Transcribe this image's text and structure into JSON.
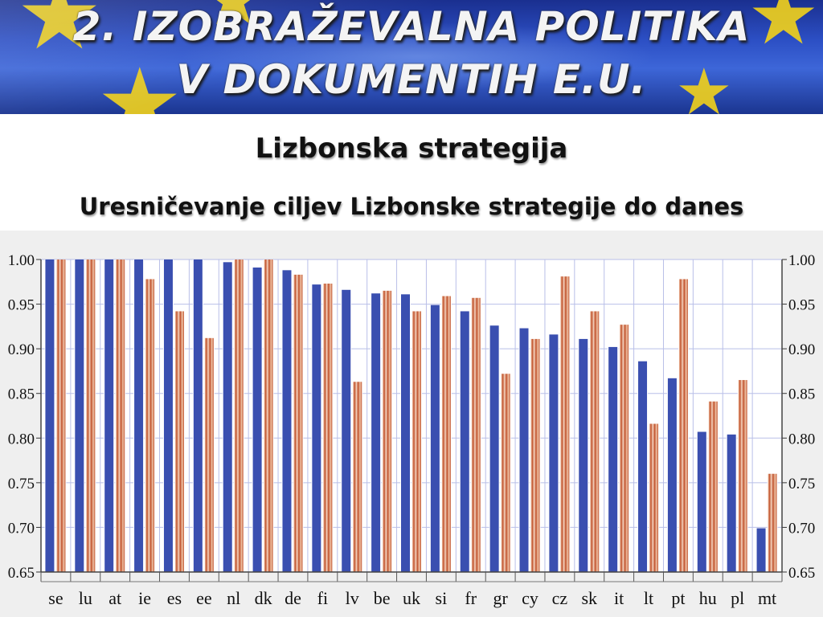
{
  "header": {
    "title_line1": "2. IZOBRAŽEVALNA POLITIKA",
    "title_line2": "V DOKUMENTIH E.U.",
    "subtitle": "Lizbonska strategija",
    "subtitle2": "Uresničevanje ciljev Lizbonske strategije do danes"
  },
  "colors": {
    "series1": "#3a4fb0",
    "series2": "#c0522c",
    "grid": "#b9bfe8",
    "plot_bg": "#ffffff"
  },
  "chart_data": {
    "type": "bar",
    "categories": [
      "se",
      "lu",
      "at",
      "ie",
      "es",
      "ee",
      "nl",
      "dk",
      "de",
      "fi",
      "lv",
      "be",
      "uk",
      "si",
      "fr",
      "gr",
      "cy",
      "cz",
      "sk",
      "it",
      "lt",
      "pt",
      "hu",
      "pl",
      "mt"
    ],
    "series": [
      {
        "values": [
          1.0,
          1.0,
          1.0,
          1.0,
          1.0,
          1.0,
          0.997,
          0.991,
          0.988,
          0.972,
          0.966,
          0.962,
          0.961,
          0.949,
          0.942,
          0.926,
          0.923,
          0.916,
          0.911,
          0.902,
          0.886,
          0.867,
          0.807,
          0.804,
          0.699
        ]
      },
      {
        "values": [
          1.0,
          1.0,
          1.0,
          0.978,
          0.942,
          0.912,
          1.0,
          1.0,
          0.983,
          0.973,
          0.863,
          0.965,
          0.942,
          0.959,
          0.957,
          0.872,
          0.911,
          0.981,
          0.942,
          0.927,
          0.816,
          0.978,
          0.841,
          0.865,
          0.76
        ]
      }
    ],
    "ylim": [
      0.65,
      1.0
    ],
    "yticks": [
      "0.65",
      "0.70",
      "0.75",
      "0.80",
      "0.85",
      "0.90",
      "0.95",
      "1.00"
    ],
    "grid": true,
    "legend": "none"
  }
}
